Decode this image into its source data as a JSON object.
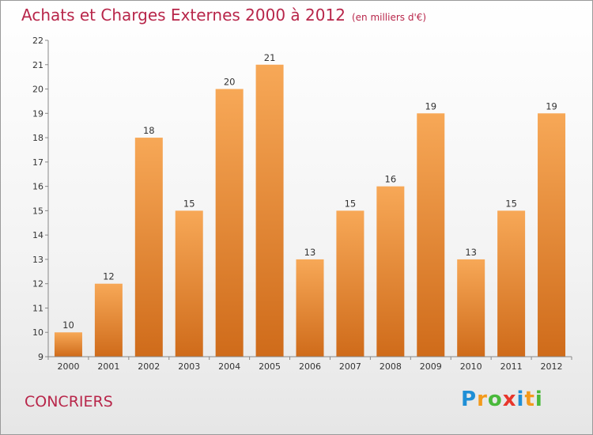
{
  "title": "Achats et Charges Externes 2000 à 2012",
  "subtitle": "(en milliers d'€)",
  "place": "CONCRIERS",
  "logo": {
    "letters": [
      "P",
      "r",
      "o",
      "x",
      "i",
      "t",
      "i"
    ],
    "colors": [
      "#1f8fd6",
      "#f39a1c",
      "#49b93b",
      "#e8362b",
      "#1f8fd6",
      "#f39a1c",
      "#49b93b"
    ]
  },
  "colors": {
    "bar_light": "#f7a857",
    "bar_dark": "#cf6b1a",
    "title": "#b8264a"
  },
  "chart_data": {
    "type": "bar",
    "categories": [
      "2000",
      "2001",
      "2002",
      "2003",
      "2004",
      "2005",
      "2006",
      "2007",
      "2008",
      "2009",
      "2010",
      "2011",
      "2012"
    ],
    "values": [
      10,
      12,
      18,
      15,
      20,
      21,
      13,
      15,
      16,
      19,
      13,
      15,
      19
    ],
    "ylim": [
      9,
      22
    ],
    "yticks": [
      9,
      10,
      11,
      12,
      13,
      14,
      15,
      16,
      17,
      18,
      19,
      20,
      21,
      22
    ],
    "grid": false,
    "xlabel": "",
    "ylabel": ""
  }
}
